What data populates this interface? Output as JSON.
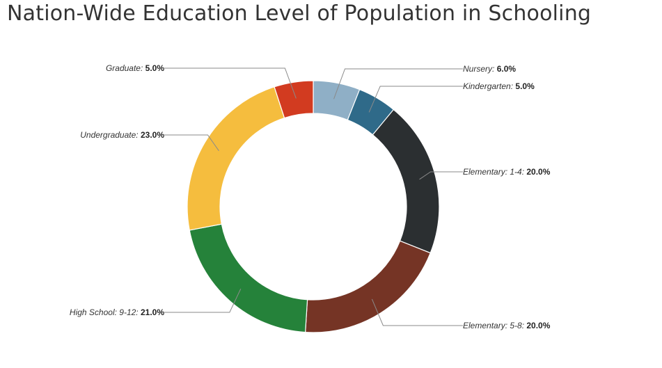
{
  "title": "Nation-Wide Education Level of Population in Schooling",
  "chart_data": {
    "type": "pie",
    "title": "Nation-Wide Education Level of Population in Schooling",
    "legend": "none",
    "categories": [
      "Nursery",
      "Kindergarten",
      "Elementary: 1-4",
      "Elementary: 5-8",
      "High School: 9-12",
      "Undergraduate",
      "Graduate"
    ],
    "values": [
      6.0,
      5.0,
      20.0,
      20.0,
      21.0,
      23.0,
      5.0
    ],
    "value_labels": [
      "6.0%",
      "5.0%",
      "20.0%",
      "20.0%",
      "21.0%",
      "23.0%",
      "5.0%"
    ],
    "colors": [
      "#8fafc6",
      "#2f6a89",
      "#2b2f31",
      "#753425",
      "#25823a",
      "#f5bd3e",
      "#d23b20"
    ]
  }
}
